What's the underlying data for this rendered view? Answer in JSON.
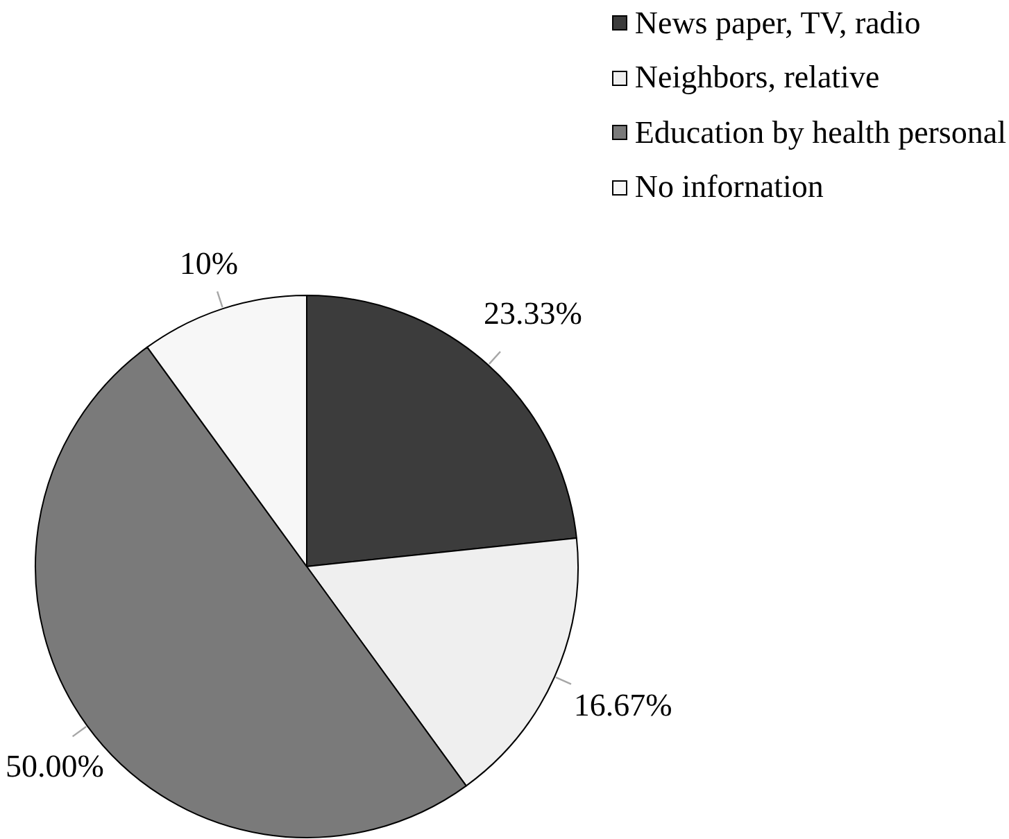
{
  "chart_data": {
    "type": "pie",
    "categories": [
      "News paper, TV, radio",
      "Neighbors, relative",
      "Education by health personal",
      "No infornation"
    ],
    "values": [
      23.33,
      16.67,
      50,
      10
    ],
    "colors": [
      "#3c3c3c",
      "#efefef",
      "#7a7a7a",
      "#f7f7f7"
    ],
    "value_labels": [
      "23.33%",
      "16.67%",
      "50.00%",
      "10%"
    ],
    "legend": "top right"
  }
}
